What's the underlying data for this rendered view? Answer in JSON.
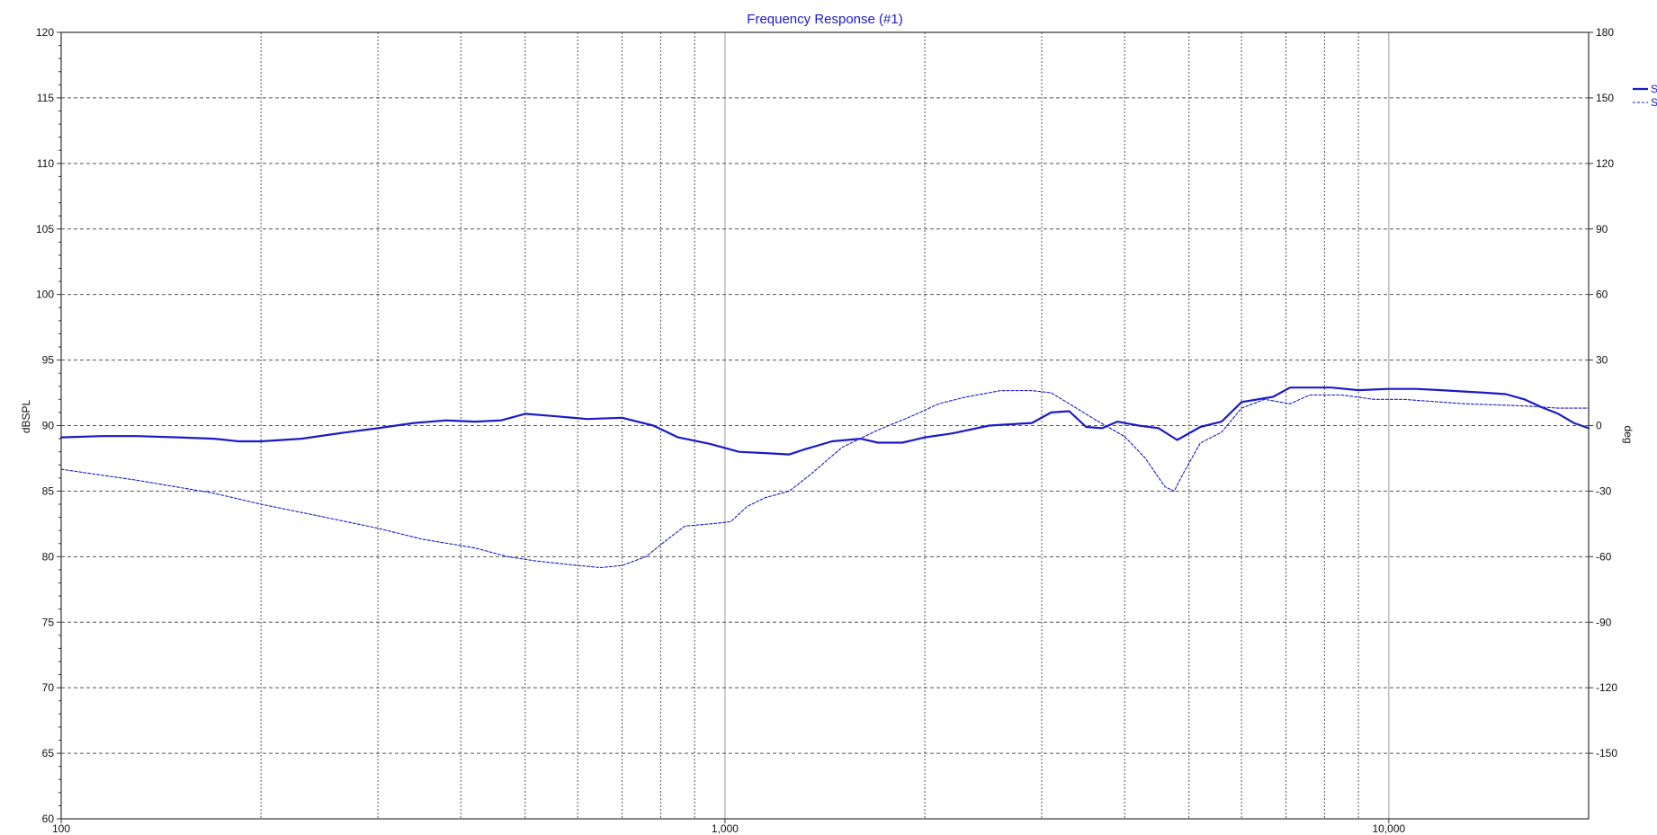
{
  "chart_data": {
    "type": "line",
    "title": "Frequency Response (#1)",
    "ylabel": "dBSPL",
    "y2label": "deg",
    "x_scale": "log",
    "xlim": [
      100,
      20000
    ],
    "ylim": [
      60,
      120
    ],
    "y2lim": [
      -180,
      180
    ],
    "x_tick_labels": [
      {
        "value": 100,
        "label": "100"
      },
      {
        "value": 1000,
        "label": "1,000"
      },
      {
        "value": 10000,
        "label": "10,000"
      }
    ],
    "y_ticks": [
      60,
      65,
      70,
      75,
      80,
      85,
      90,
      95,
      100,
      105,
      110,
      115,
      120
    ],
    "y2_ticks": [
      -150,
      -120,
      -90,
      -60,
      -30,
      0,
      30,
      60,
      90,
      120,
      150,
      180
    ],
    "grid": true,
    "legend_position": "right",
    "legend_entries": [
      {
        "label": "S",
        "style": "solid"
      },
      {
        "label": "S",
        "style": "dashed"
      }
    ],
    "colors": {
      "series": "#1a1ac8",
      "title": "#1a1ac8",
      "grid": "#555555",
      "frame": "#333333"
    },
    "series": [
      {
        "axis": "left",
        "style": "solid",
        "x": [
          100,
          115,
          130,
          150,
          170,
          185,
          200,
          230,
          270,
          300,
          340,
          380,
          420,
          460,
          500,
          560,
          620,
          700,
          780,
          850,
          950,
          1050,
          1150,
          1250,
          1320,
          1450,
          1600,
          1700,
          1850,
          2000,
          2200,
          2500,
          2700,
          2900,
          3100,
          3300,
          3500,
          3700,
          3900,
          4200,
          4500,
          4800,
          5200,
          5600,
          6000,
          6700,
          7100,
          7500,
          8200,
          9000,
          10000,
          11000,
          12000,
          13000,
          14000,
          15000,
          16000,
          17000,
          18000,
          19000,
          20000
        ],
        "values": [
          89.1,
          89.2,
          89.2,
          89.1,
          89.0,
          88.8,
          88.8,
          89.0,
          89.5,
          89.8,
          90.2,
          90.4,
          90.3,
          90.4,
          90.9,
          90.7,
          90.5,
          90.6,
          90.0,
          89.1,
          88.6,
          88.0,
          87.9,
          87.8,
          88.2,
          88.8,
          89.0,
          88.7,
          88.7,
          89.1,
          89.4,
          90.0,
          90.1,
          90.2,
          91.0,
          91.1,
          89.9,
          89.8,
          90.3,
          90.0,
          89.8,
          88.9,
          89.9,
          90.3,
          91.8,
          92.2,
          92.9,
          92.9,
          92.9,
          92.7,
          92.8,
          92.8,
          92.7,
          92.6,
          92.5,
          92.4,
          92.0,
          91.4,
          90.9,
          90.2,
          89.8
        ]
      },
      {
        "axis": "right",
        "style": "dashed",
        "x": [
          100,
          130,
          170,
          200,
          250,
          300,
          350,
          420,
          470,
          520,
          600,
          650,
          700,
          760,
          820,
          870,
          950,
          1020,
          1080,
          1150,
          1250,
          1350,
          1500,
          1700,
          1900,
          2100,
          2300,
          2600,
          2900,
          3100,
          3300,
          3600,
          4000,
          4300,
          4600,
          4750,
          4900,
          5200,
          5600,
          6000,
          6500,
          7100,
          7600,
          8500,
          9500,
          10500,
          13000,
          16000,
          18000,
          20000
        ],
        "values": [
          -20,
          -25,
          -31,
          -36,
          -42,
          -47,
          -52,
          -56,
          -60,
          -62,
          -64,
          -65,
          -64,
          -60,
          -52,
          -46,
          -45,
          -44,
          -37,
          -33,
          -30,
          -22,
          -10,
          -2,
          4,
          10,
          13,
          16,
          16,
          15,
          10,
          3,
          -5,
          -15,
          -28,
          -30,
          -22,
          -8,
          -3,
          8,
          12,
          10,
          14,
          14,
          12,
          12,
          10,
          9,
          8,
          8
        ]
      }
    ]
  }
}
